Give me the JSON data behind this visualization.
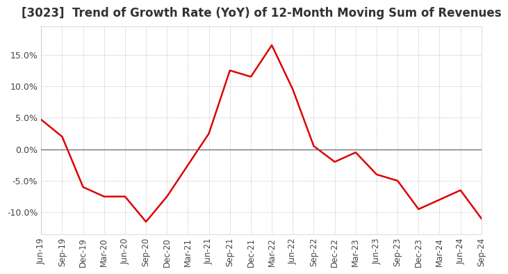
{
  "title": "[3023]  Trend of Growth Rate (YoY) of 12-Month Moving Sum of Revenues",
  "title_fontsize": 12,
  "line_color": "#dd0000",
  "background_color": "#ffffff",
  "plot_bg_color": "#ffffff",
  "grid_color": "#aaaaaa",
  "ylim": [
    -0.135,
    0.195
  ],
  "yticks": [
    -0.1,
    -0.05,
    0.0,
    0.05,
    0.1,
    0.15
  ],
  "dates": [
    "Jun-19",
    "Sep-19",
    "Dec-19",
    "Mar-20",
    "Jun-20",
    "Sep-20",
    "Dec-20",
    "Mar-21",
    "Jun-21",
    "Sep-21",
    "Dec-21",
    "Mar-22",
    "Jun-22",
    "Sep-22",
    "Dec-22",
    "Mar-23",
    "Jun-23",
    "Sep-23",
    "Dec-23",
    "Mar-24",
    "Jun-24",
    "Sep-24"
  ],
  "values": [
    0.047,
    0.02,
    -0.06,
    -0.075,
    -0.075,
    -0.115,
    -0.075,
    -0.025,
    0.025,
    0.125,
    0.115,
    0.165,
    0.095,
    0.005,
    -0.02,
    -0.005,
    -0.04,
    -0.05,
    -0.095,
    -0.08,
    -0.065,
    -0.11
  ]
}
